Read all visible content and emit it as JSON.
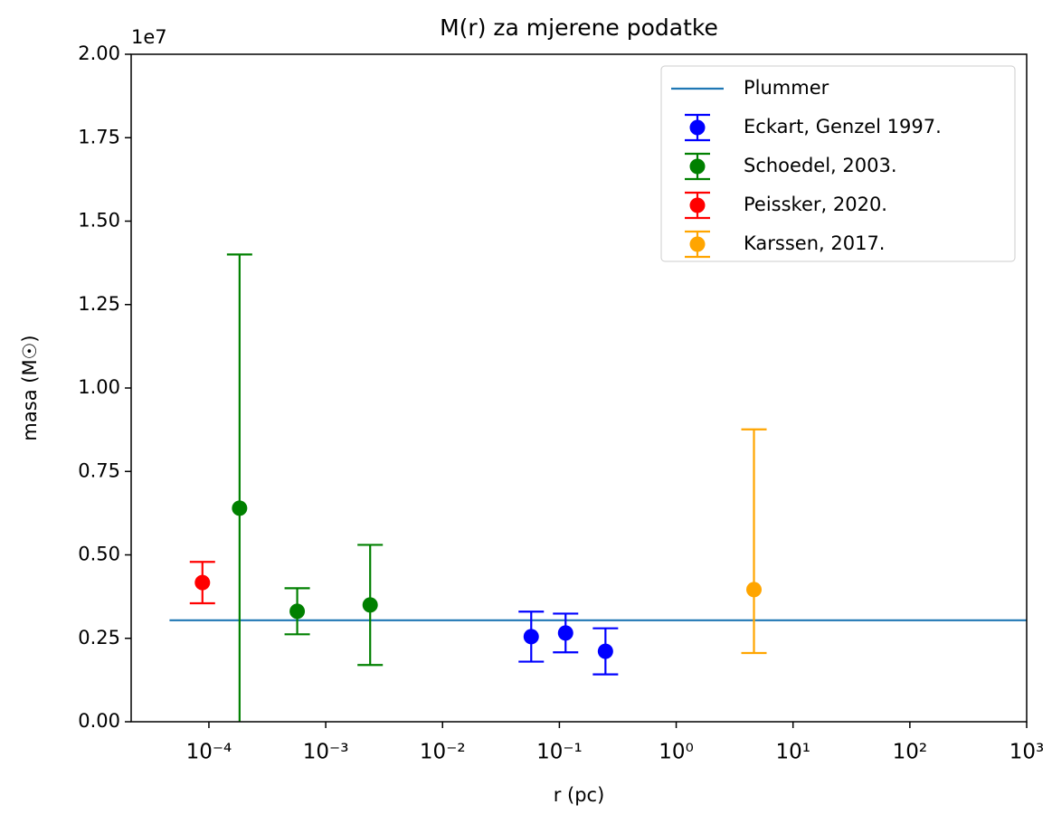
{
  "chart_data": {
    "type": "errorbar",
    "title": "M(r) za mjerene podatke",
    "xlabel": "r (pc)",
    "ylabel": "masa (M☉)",
    "y_offset_label": "1e7",
    "xscale": "log",
    "xlim": [
      2.16e-05,
      1000
    ],
    "xticks": [
      {
        "value": 0.0001,
        "label": "10⁻⁴"
      },
      {
        "value": 0.001,
        "label": "10⁻³"
      },
      {
        "value": 0.01,
        "label": "10⁻²"
      },
      {
        "value": 0.1,
        "label": "10⁻¹"
      },
      {
        "value": 1,
        "label": "10⁰"
      },
      {
        "value": 10,
        "label": "10¹"
      },
      {
        "value": 100,
        "label": "10²"
      },
      {
        "value": 1000,
        "label": "10³"
      }
    ],
    "ylim": [
      0,
      2
    ],
    "yticks": [
      {
        "value": 0,
        "label": "0.00"
      },
      0.25,
      {
        "value": 0.5,
        "label": "0.50"
      },
      0.75,
      {
        "value": 1,
        "label": "1.00"
      },
      1.25,
      {
        "value": 1.5,
        "label": "1.50"
      },
      1.75,
      {
        "value": 2,
        "label": "2.00"
      }
    ],
    "legend": "upper right",
    "line": {
      "name": "Plummer",
      "color": "#1f77b4",
      "x": [
        4.6e-05,
        1000
      ],
      "values": [
        0.304,
        0.304
      ]
    },
    "series": [
      {
        "name": "Eckart, Genzel 1997.",
        "color": "#0000ff",
        "x": [
          0.0574,
          0.113,
          0.248
        ],
        "values": [
          0.255,
          0.266,
          0.211
        ],
        "yerr_minus": [
          0.075,
          0.058,
          0.069
        ],
        "yerr_plus": [
          0.075,
          0.058,
          0.069
        ]
      },
      {
        "name": "Schoedel, 2003.",
        "color": "#008000",
        "x": [
          0.000183,
          0.00057,
          0.0024
        ],
        "values": [
          0.64,
          0.331,
          0.35
        ],
        "yerr_minus": [
          0.76,
          0.069,
          0.18
        ],
        "yerr_plus": [
          0.76,
          0.069,
          0.18
        ]
      },
      {
        "name": "Peissker, 2020.",
        "color": "#ff0000",
        "x": [
          8.8e-05
        ],
        "values": [
          0.417
        ],
        "yerr_minus": [
          0.062
        ],
        "yerr_plus": [
          0.062
        ]
      },
      {
        "name": "Karssen, 2017.",
        "color": "#ffa500",
        "x": [
          4.63
        ],
        "values": [
          0.396
        ],
        "yerr_minus": [
          0.19
        ],
        "yerr_plus": [
          0.48
        ]
      }
    ]
  }
}
